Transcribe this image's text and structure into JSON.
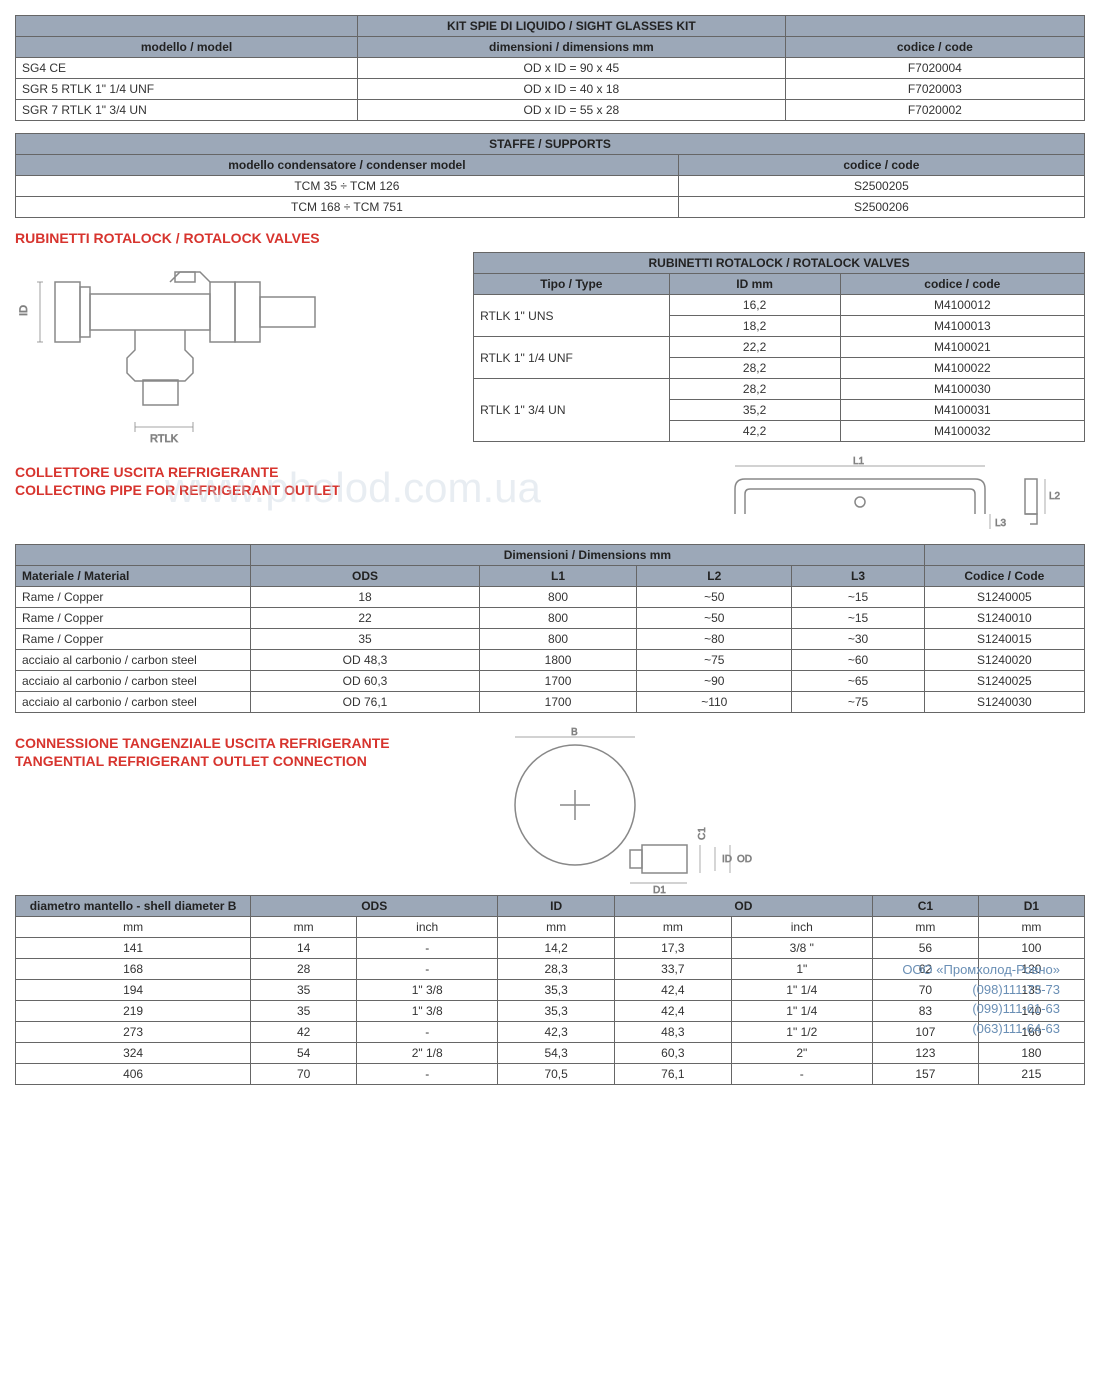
{
  "t1": {
    "title": "KIT SPIE DI LIQUIDO / SIGHT GLASSES KIT",
    "h": [
      "modello / model",
      "dimensioni / dimensions  mm",
      "codice / code"
    ],
    "r": [
      [
        "SG4 CE",
        "OD x ID = 90 x 45",
        "F7020004"
      ],
      [
        "SGR 5 RTLK 1\" 1/4  UNF",
        "OD x ID = 40 x 18",
        "F7020003"
      ],
      [
        "SGR 7 RTLK 1\" 3/4 UN",
        "OD x ID = 55 x 28",
        "F7020002"
      ]
    ]
  },
  "t2": {
    "title": "STAFFE / SUPPORTS",
    "h": [
      "modello condensatore / condenser model",
      "codice / code"
    ],
    "r": [
      [
        "TCM 35 ÷ TCM 126",
        "S2500205"
      ],
      [
        "TCM 168 ÷ TCM 751",
        "S2500206"
      ]
    ]
  },
  "s3": {
    "title": "RUBINETTI ROTALOCK / ROTALOCK VALVES"
  },
  "t3": {
    "title": "RUBINETTI ROTALOCK / ROTALOCK VALVES",
    "h": [
      "Tipo / Type",
      "ID mm",
      "codice / code"
    ],
    "g": [
      {
        "type": "RTLK 1\" UNS",
        "rows": [
          [
            "16,2",
            "M4100012"
          ],
          [
            "18,2",
            "M4100013"
          ]
        ]
      },
      {
        "type": "RTLK 1\" 1/4 UNF",
        "rows": [
          [
            "22,2",
            "M4100021"
          ],
          [
            "28,2",
            "M4100022"
          ]
        ]
      },
      {
        "type": "RTLK 1\" 3/4 UN",
        "rows": [
          [
            "28,2",
            "M4100030"
          ],
          [
            "35,2",
            "M4100031"
          ],
          [
            "42,2",
            "M4100032"
          ]
        ]
      }
    ]
  },
  "s4": {
    "title1": "COLLETTORE USCITA REFRIGERANTE",
    "title2": "COLLECTING PIPE FOR REFRIGERANT OUTLET"
  },
  "t4": {
    "title": "Dimensioni / Dimensions  mm",
    "h": [
      "Materiale / Material",
      "ODS",
      "L1",
      "L2",
      "L3",
      "Codice / Code"
    ],
    "r": [
      [
        "Rame / Copper",
        "18",
        "800",
        "~50",
        "~15",
        "S1240005"
      ],
      [
        "Rame / Copper",
        "22",
        "800",
        "~50",
        "~15",
        "S1240010"
      ],
      [
        "Rame / Copper",
        "35",
        "800",
        "~80",
        "~30",
        "S1240015"
      ],
      [
        "acciaio al carbonio / carbon steel",
        "OD 48,3",
        "1800",
        "~75",
        "~60",
        "S1240020"
      ],
      [
        "acciaio al carbonio / carbon steel",
        "OD 60,3",
        "1700",
        "~90",
        "~65",
        "S1240025"
      ],
      [
        "acciaio al carbonio / carbon steel",
        "OD 76,1",
        "1700",
        "~110",
        "~75",
        "S1240030"
      ]
    ]
  },
  "s5": {
    "title1": "CONNESSIONE TANGENZIALE USCITA REFRIGERANTE",
    "title2": "TANGENTIAL REFRIGERANT OUTLET CONNECTION"
  },
  "t5": {
    "h": [
      "diametro mantello - shell diameter B",
      "ODS",
      "",
      "ID",
      "OD",
      "",
      "C1",
      "D1"
    ],
    "h2": [
      "mm",
      "mm",
      "inch",
      "mm",
      "mm",
      "inch",
      "mm",
      "mm"
    ],
    "r": [
      [
        "141",
        "14",
        "-",
        "14,2",
        "17,3",
        "3/8 \"",
        "56",
        "100"
      ],
      [
        "168",
        "28",
        "-",
        "28,3",
        "33,7",
        "1\"",
        "62",
        "120"
      ],
      [
        "194",
        "35",
        "1\" 3/8",
        "35,3",
        "42,4",
        "1\" 1/4",
        "70",
        "135"
      ],
      [
        "219",
        "35",
        "1\" 3/8",
        "35,3",
        "42,4",
        "1\" 1/4",
        "83",
        "140"
      ],
      [
        "273",
        "42",
        "-",
        "42,3",
        "48,3",
        "1\" 1/2",
        "107",
        "160"
      ],
      [
        "324",
        "54",
        "2\" 1/8",
        "54,3",
        "60,3",
        "2\"",
        "123",
        "180"
      ],
      [
        "406",
        "70",
        "-",
        "70,5",
        "76,1",
        "-",
        "157",
        "215"
      ]
    ]
  },
  "wm": "www.pholod.com.ua",
  "contact": [
    "ООО «Промхолод-Ровно»",
    "(098)111-73-73",
    "(099)111-61-63",
    "(063)111-64-63"
  ],
  "colors": {
    "hdr": "#9ca8b8",
    "title": "#d7342e",
    "border": "#666",
    "dim": "#888"
  }
}
